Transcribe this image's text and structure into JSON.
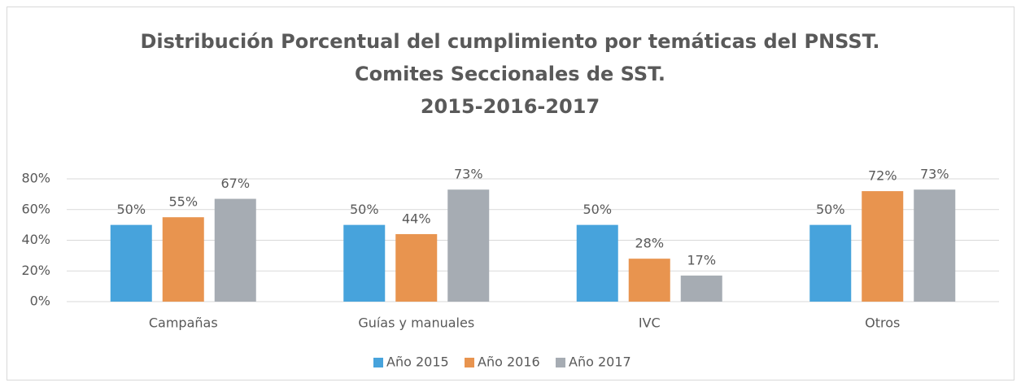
{
  "chart_data": {
    "type": "bar",
    "title": [
      "Distribución Porcentual del cumplimiento por temáticas del PNSST.",
      "Comites Seccionales de SST.",
      "2015-2016-2017"
    ],
    "categories": [
      "Campañas",
      "Guías y manuales",
      "IVC",
      "Otros"
    ],
    "series": [
      {
        "name": "Año 2015",
        "color": "#47a3dc",
        "values": [
          50,
          50,
          50,
          50
        ],
        "value_labels": [
          "50%",
          "50%",
          "50%",
          "50%"
        ]
      },
      {
        "name": "Año 2016",
        "color": "#e8944f",
        "values": [
          55,
          44,
          28,
          72
        ],
        "value_labels": [
          "55%",
          "44%",
          "28%",
          "72%"
        ]
      },
      {
        "name": "Año 2017",
        "color": "#a6acb3",
        "values": [
          67,
          73,
          17,
          73
        ],
        "value_labels": [
          "67%",
          "73%",
          "17%",
          "73%"
        ]
      }
    ],
    "ylim": [
      0,
      80
    ],
    "yticks": [
      {
        "value": 0,
        "label": "0%"
      },
      {
        "value": 20,
        "label": "20%"
      },
      {
        "value": 40,
        "label": "40%"
      },
      {
        "value": 60,
        "label": "60%"
      },
      {
        "value": 80,
        "label": "80%"
      }
    ],
    "grid": true,
    "legend": "bottom"
  }
}
